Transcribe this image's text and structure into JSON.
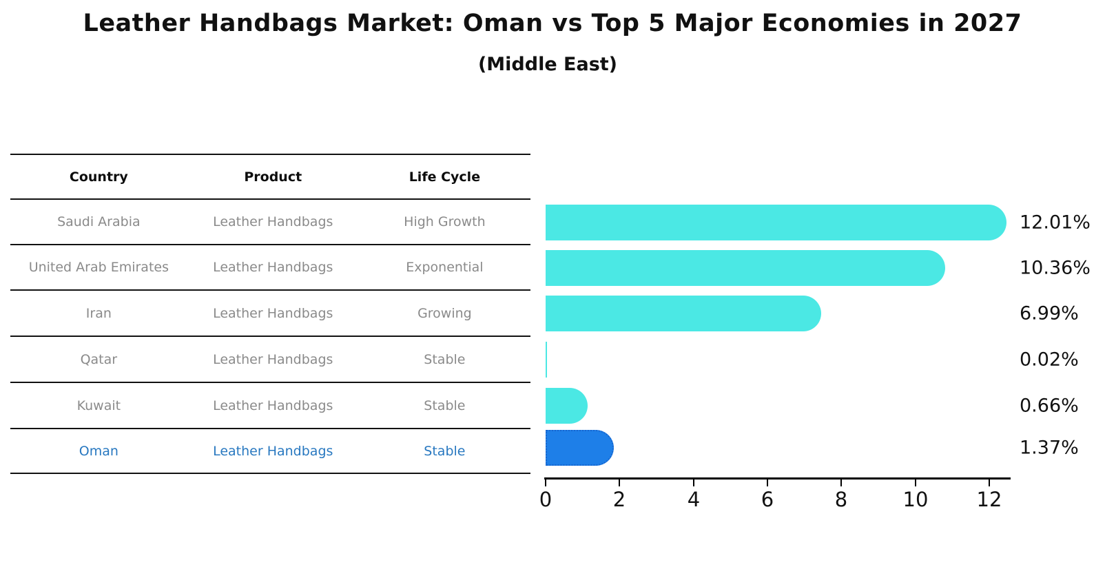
{
  "title": "Leather Handbags Market: Oman vs Top 5 Major Economies in 2027",
  "subtitle": "(Middle East)",
  "table": {
    "headers": [
      "Country",
      "Product",
      "Life Cycle"
    ],
    "rows": [
      {
        "country": "Saudi Arabia",
        "product": "Leather Handbags",
        "life_cycle": "High Growth",
        "highlighted": false
      },
      {
        "country": "United Arab Emirates",
        "product": "Leather Handbags",
        "life_cycle": "Exponential",
        "highlighted": false
      },
      {
        "country": "Iran",
        "product": "Leather Handbags",
        "life_cycle": "Growing",
        "highlighted": false
      },
      {
        "country": "Qatar",
        "product": "Leather Handbags",
        "life_cycle": "Stable",
        "highlighted": false
      },
      {
        "country": "Kuwait",
        "product": "Leather Handbags",
        "life_cycle": "Stable",
        "highlighted": false
      },
      {
        "country": "Oman",
        "product": "Leather Handbags",
        "life_cycle": "Stable",
        "highlighted": true
      }
    ]
  },
  "chart_data": {
    "type": "bar",
    "orientation": "horizontal",
    "title": "Leather Handbags Market: Oman vs Top 5 Major Economies in 2027 (Middle East)",
    "categories": [
      "Saudi Arabia",
      "United Arab Emirates",
      "Iran",
      "Qatar",
      "Kuwait",
      "Oman"
    ],
    "values": [
      12.01,
      10.36,
      6.99,
      0.02,
      0.66,
      1.37
    ],
    "value_labels": [
      "12.01%",
      "10.36%",
      "6.99%",
      "0.02%",
      "0.66%",
      "1.37%"
    ],
    "xticks": [
      "0",
      "2",
      "4",
      "6",
      "8",
      "10",
      "12"
    ],
    "xlim": [
      0,
      12.6
    ],
    "grid": false,
    "legend": "none",
    "bar_color": "#4BE8E4",
    "highlight_index": 5,
    "highlight_color": "#1E7FE8",
    "highlight_border_color": "#1766CF"
  },
  "colors": {
    "row_text": "#8a8a8a",
    "highlight_text": "#2878C0",
    "header_text": "#0d0d0d",
    "axis": "#000000",
    "background": "#ffffff"
  }
}
